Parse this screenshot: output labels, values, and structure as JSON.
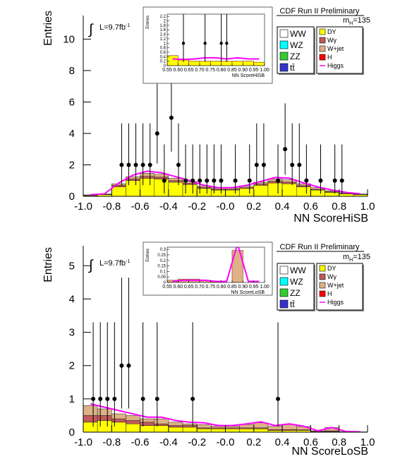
{
  "chart_data": [
    {
      "type": "histogram",
      "title": "CDF Run II Preliminary",
      "x_label": "NN ScoreHiSB",
      "y_label": "Entries",
      "mass_label": {
        "text": "m",
        "sub": "H",
        "rest": "=135"
      },
      "lumi_label": {
        "sign": "∫",
        "text": "L=9.7fb",
        "sup": "-1"
      },
      "bins": [
        -1.0,
        -0.9,
        -0.8,
        -0.7,
        -0.6,
        -0.5,
        -0.4,
        -0.3,
        -0.2,
        -0.1,
        0.0,
        0.1,
        0.2,
        0.3,
        0.4,
        0.5,
        0.6,
        0.7,
        0.8,
        0.9,
        1.0
      ],
      "xlim": [
        -1.0,
        1.0
      ],
      "ylim": [
        0,
        11.5
      ],
      "xticks": [
        {
          "value": -1,
          "label": "-1.0"
        },
        -0.8,
        -0.6,
        -0.4,
        -0.2,
        {
          "value": 0,
          "label": "-0.0"
        },
        0.2,
        0.4,
        0.6,
        0.8,
        {
          "value": 1,
          "label": "1.0"
        }
      ],
      "yticks": [
        0,
        2,
        4,
        6,
        8,
        10
      ],
      "series": [
        {
          "name": "WW",
          "color": "#ffffff"
        },
        {
          "name": "WZ",
          "color": "#00ffff"
        },
        {
          "name": "ZZ",
          "color": "#33cc33"
        },
        {
          "name": "tt̄",
          "color": "#3333cc"
        },
        {
          "name": "DY",
          "color": "#ffff00",
          "values": [
            0.05,
            0.1,
            0.6,
            1.0,
            1.15,
            1.1,
            0.9,
            0.75,
            0.5,
            0.4,
            0.4,
            0.5,
            0.7,
            0.85,
            0.8,
            0.6,
            0.4,
            0.25,
            0.15,
            0.1
          ]
        },
        {
          "name": "Wγ",
          "color": "#c15a5a",
          "values": [
            0.02,
            0.02,
            0.1,
            0.1,
            0.12,
            0.12,
            0.1,
            0.08,
            0.06,
            0.05,
            0.05,
            0.05,
            0.08,
            0.1,
            0.1,
            0.08,
            0.05,
            0.04,
            0.03,
            0.02
          ]
        },
        {
          "name": "W+jet",
          "color": "#deb187",
          "values": [
            0.02,
            0.03,
            0.1,
            0.15,
            0.2,
            0.18,
            0.15,
            0.12,
            0.1,
            0.08,
            0.08,
            0.1,
            0.12,
            0.15,
            0.15,
            0.12,
            0.1,
            0.06,
            0.05,
            0.03
          ]
        },
        {
          "name": "H",
          "color": "#ff0000"
        },
        {
          "name": "Higgs",
          "color": "#ff00ff",
          "style": "line",
          "values": [
            0.01,
            0.01,
            0.05,
            0.1,
            0.13,
            0.1,
            0.1,
            0.05,
            0.04,
            0.02,
            0.02,
            0.05,
            0.05,
            0.1,
            0.1,
            0.05,
            0.05,
            0.05,
            0.02,
            0.01
          ]
        }
      ],
      "data": {
        "x": [
          -0.73,
          -0.68,
          -0.63,
          -0.58,
          -0.53,
          -0.48,
          -0.43,
          -0.38,
          -0.33,
          -0.28,
          -0.23,
          -0.18,
          -0.13,
          -0.08,
          -0.03,
          0.07,
          0.17,
          0.22,
          0.27,
          0.37,
          0.42,
          0.47,
          0.52,
          0.57,
          0.67,
          0.77,
          0.82
        ],
        "values": [
          2,
          2,
          2,
          2,
          2,
          4,
          1,
          5,
          2,
          1,
          1,
          1,
          1,
          1,
          1,
          1,
          1,
          2,
          2,
          1,
          3,
          2,
          2,
          1,
          1,
          1,
          1
        ],
        "yerr_low": [
          1.29,
          1.29,
          1.29,
          1.29,
          1.29,
          1.91,
          0.83,
          2.16,
          1.29,
          0.83,
          0.83,
          0.83,
          0.83,
          0.83,
          0.83,
          0.83,
          0.83,
          1.29,
          1.29,
          0.83,
          1.63,
          1.29,
          1.29,
          0.83,
          0.83,
          0.83,
          0.83
        ],
        "yerr_high": [
          2.64,
          2.64,
          2.64,
          2.64,
          2.64,
          3.16,
          2.3,
          3.38,
          2.64,
          2.3,
          2.3,
          2.3,
          2.3,
          2.3,
          2.3,
          2.3,
          2.3,
          2.64,
          2.64,
          2.3,
          2.92,
          2.64,
          2.64,
          2.3,
          2.3,
          2.3,
          2.3
        ]
      },
      "inset": {
        "x_label": "NN ScoreHiSB",
        "y_label": "Entries",
        "bins": [
          0.55,
          0.6,
          0.65,
          0.7,
          0.75,
          0.8,
          0.85,
          0.9,
          0.95,
          1.0
        ],
        "xlim": [
          0.55,
          1.0
        ],
        "ylim": [
          0,
          2.3
        ],
        "xticks": [
          0.55,
          {
            "value": 0.6,
            "label": "0.60"
          },
          0.65,
          {
            "value": 0.7,
            "label": "0.70"
          },
          0.75,
          {
            "value": 0.8,
            "label": "0.80"
          },
          0.85,
          {
            "value": 0.9,
            "label": "0.90"
          },
          0.95,
          {
            "value": 1,
            "label": "1.00"
          }
        ],
        "yticks": [
          0,
          0.2,
          0.4,
          0.6,
          0.8,
          1,
          1.2,
          1.4,
          1.6,
          1.8,
          2,
          2.2
        ],
        "values": [
          0.45,
          0.25,
          0.2,
          0.2,
          0.2,
          0.2,
          0.2,
          0.2,
          0.15
        ],
        "color": "#ffff00",
        "line_values": [
          0.3,
          0.28,
          0.3,
          0.35,
          0.35,
          0.3,
          0.35,
          0.3,
          0.3
        ],
        "line_color": "#ff00ff",
        "data": {
          "x": [
            0.625,
            0.725,
            0.8,
            0.825
          ],
          "values": [
            1,
            1,
            1,
            1
          ],
          "yerr_low": [
            0.83,
            0.83,
            0.83,
            0.83
          ],
          "yerr_high": [
            2.3,
            2.3,
            2.3,
            2.3
          ]
        }
      }
    },
    {
      "type": "histogram",
      "title": "CDF Run II Preliminary",
      "x_label": "NN ScoreLoSB",
      "y_label": "Entries",
      "mass_label": {
        "text": "m",
        "sub": "H",
        "rest": "=135"
      },
      "lumi_label": {
        "sign": "∫",
        "text": "L=9.7fb",
        "sup": "-1"
      },
      "bins": [
        -1.0,
        -0.9,
        -0.8,
        -0.7,
        -0.6,
        -0.5,
        -0.4,
        -0.3,
        -0.2,
        -0.1,
        0.0,
        0.1,
        0.2,
        0.3,
        0.4,
        0.5,
        0.6,
        0.7,
        0.8,
        0.9,
        1.0
      ],
      "xlim": [
        -1.0,
        1.0
      ],
      "ylim": [
        0,
        5.6
      ],
      "xticks": [
        {
          "value": -1,
          "label": "-1.0"
        },
        -0.8,
        -0.6,
        -0.4,
        -0.2,
        {
          "value": 0,
          "label": "-0.0"
        },
        0.2,
        0.4,
        0.6,
        0.8,
        {
          "value": 1,
          "label": "1.0"
        }
      ],
      "yticks": [
        0,
        1,
        2,
        3,
        4,
        5
      ],
      "series": [
        {
          "name": "WW",
          "color": "#ffffff"
        },
        {
          "name": "WZ",
          "color": "#00ffff"
        },
        {
          "name": "ZZ",
          "color": "#33cc33"
        },
        {
          "name": "tt̄",
          "color": "#3333cc"
        },
        {
          "name": "DY",
          "color": "#ffff00",
          "values": [
            0.3,
            0.35,
            0.3,
            0.25,
            0.2,
            0.2,
            0.15,
            0.15,
            0.1,
            0.1,
            0.1,
            0.1,
            0.1,
            0.05,
            0.05,
            0.05,
            0.02,
            0.02,
            0.02,
            0.01
          ]
        },
        {
          "name": "Wγ",
          "color": "#c15a5a",
          "values": [
            0.2,
            0.15,
            0.1,
            0.1,
            0.1,
            0.05,
            0.05,
            0.05,
            0.03,
            0.03,
            0.03,
            0.03,
            0.03,
            0.03,
            0.03,
            0.02,
            0.02,
            0.02,
            0,
            0
          ]
        },
        {
          "name": "W+jet",
          "color": "#deb187",
          "values": [
            0.3,
            0.2,
            0.15,
            0.15,
            0.1,
            0.15,
            0.1,
            0.05,
            0.1,
            0.05,
            0.05,
            0.1,
            0.15,
            0.1,
            0.15,
            0.1,
            0,
            0.1,
            0,
            0
          ]
        },
        {
          "name": "H",
          "color": "#ff0000"
        },
        {
          "name": "Higgs",
          "color": "#ff00ff",
          "style": "line",
          "values": [
            0.05,
            0.05,
            0.1,
            0.05,
            0.05,
            0.05,
            0.05,
            0.05,
            0.05,
            0.02,
            0.02,
            0.02,
            0.03,
            0.02,
            0.02,
            0.01,
            0,
            0,
            0,
            0
          ]
        }
      ],
      "data": {
        "x": [
          -0.93,
          -0.88,
          -0.83,
          -0.78,
          -0.73,
          -0.68,
          -0.58,
          -0.48,
          -0.23,
          0.37
        ],
        "values": [
          1,
          1,
          1,
          1,
          2,
          2,
          1,
          1,
          1,
          1
        ],
        "yerr_low": [
          0.83,
          0.83,
          0.83,
          0.83,
          1.29,
          1.29,
          0.83,
          0.83,
          0.83,
          0.83
        ],
        "yerr_high": [
          2.3,
          2.3,
          2.3,
          2.3,
          2.64,
          2.64,
          2.3,
          2.3,
          2.3,
          2.3
        ]
      },
      "inset": {
        "x_label": "NN ScoreLoSB",
        "y_label": "Entries",
        "bins": [
          0.55,
          0.6,
          0.65,
          0.7,
          0.75,
          0.8,
          0.85,
          0.9,
          0.95,
          1.0
        ],
        "xlim": [
          0.55,
          1.0
        ],
        "ylim": [
          0,
          0.32
        ],
        "xticks": [
          0.55,
          {
            "value": 0.6,
            "label": "0.60"
          },
          0.65,
          {
            "value": 0.7,
            "label": "0.70"
          },
          0.75,
          {
            "value": 0.8,
            "label": "0.80"
          },
          0.85,
          {
            "value": 0.9,
            "label": "0.90"
          },
          0.95,
          {
            "value": 1,
            "label": "1.00"
          }
        ],
        "yticks": [
          0,
          0.05,
          0.1,
          0.15,
          0.2,
          0.25,
          0.3
        ],
        "values": [
          0.02,
          0.03,
          0.03,
          0.02,
          0.01,
          0,
          0.29,
          0,
          0
        ],
        "color": "#deb187",
        "line_values": [
          0.01,
          0.02,
          0.02,
          0.02,
          0.01,
          0.01,
          0.35,
          0.01,
          0.01
        ],
        "line_color": "#ff00ff"
      }
    }
  ]
}
